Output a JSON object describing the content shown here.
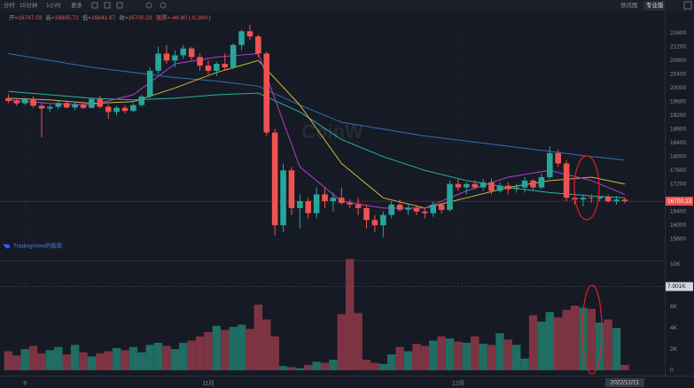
{
  "toolbar": {
    "items": [
      "分时",
      "15分钟",
      "1小时",
      "更多"
    ],
    "right": [
      "快讯图",
      "专业版"
    ]
  },
  "chart_data": {
    "type": "candlestick",
    "header": {
      "labels": [
        "开=",
        "高=",
        "低=",
        "收="
      ],
      "change": "涨跌=-46.80 (-0.28%)"
    },
    "watermark": "CoinW",
    "attribution": "TradingView的图表",
    "xlim": [
      -1,
      78.8
    ],
    "xticks": [
      {
        "value": 2,
        "label": "9"
      },
      {
        "value": 24,
        "label": "11月"
      },
      {
        "value": 54,
        "label": "12月"
      }
    ],
    "current_date": {
      "value": 74,
      "label": "2022/12/21"
    },
    "ylim": [
      15000,
      22200
    ],
    "yticks": [
      15600,
      16000,
      16400,
      17200,
      17600,
      18000,
      18400,
      18800,
      19200,
      19600,
      20000,
      20400,
      20800,
      21200,
      21600
    ],
    "grid": true,
    "up_color": "#26a69a",
    "down_color": "#ef5350",
    "ohlc": [
      [
        19700,
        19820,
        19550,
        19620
      ],
      [
        19620,
        19700,
        19480,
        19550
      ],
      [
        19550,
        19720,
        19500,
        19680
      ],
      [
        19680,
        19760,
        19420,
        19480
      ],
      [
        19480,
        19560,
        18560,
        19400
      ],
      [
        19400,
        19520,
        19300,
        19450
      ],
      [
        19450,
        19620,
        19380,
        19560
      ],
      [
        19560,
        19640,
        19400,
        19430
      ],
      [
        19430,
        19600,
        19350,
        19520
      ],
      [
        19520,
        19580,
        19380,
        19420
      ],
      [
        19420,
        19720,
        19400,
        19680
      ],
      [
        19680,
        19760,
        19400,
        19450
      ],
      [
        19450,
        19520,
        19100,
        19300
      ],
      [
        19300,
        19480,
        19200,
        19420
      ],
      [
        19420,
        19500,
        19260,
        19330
      ],
      [
        19330,
        19550,
        19300,
        19500
      ],
      [
        19500,
        19800,
        19450,
        19750
      ],
      [
        19750,
        20600,
        19700,
        20500
      ],
      [
        20500,
        21200,
        20400,
        21000
      ],
      [
        21000,
        21250,
        20700,
        20800
      ],
      [
        20800,
        21100,
        20600,
        20950
      ],
      [
        20950,
        21250,
        20850,
        21150
      ],
      [
        21150,
        21200,
        20800,
        20900
      ],
      [
        20900,
        21000,
        20500,
        20650
      ],
      [
        20650,
        20800,
        20400,
        20500
      ],
      [
        20500,
        20750,
        20350,
        20700
      ],
      [
        20700,
        21000,
        20500,
        20600
      ],
      [
        20600,
        21300,
        20550,
        21250
      ],
      [
        21250,
        21700,
        21100,
        21650
      ],
      [
        21650,
        21850,
        21400,
        21500
      ],
      [
        21500,
        21550,
        20900,
        21000
      ],
      [
        21000,
        21050,
        18600,
        18700
      ],
      [
        18700,
        18800,
        15700,
        16000
      ],
      [
        16000,
        17800,
        15800,
        17600
      ],
      [
        17600,
        17700,
        16300,
        16500
      ],
      [
        16500,
        16900,
        15900,
        16700
      ],
      [
        16700,
        16800,
        16200,
        16350
      ],
      [
        16350,
        17100,
        16200,
        16900
      ],
      [
        16900,
        17100,
        16500,
        16700
      ],
      [
        16700,
        16950,
        16400,
        16800
      ],
      [
        16800,
        17100,
        16600,
        16650
      ],
      [
        16650,
        16750,
        16500,
        16600
      ],
      [
        16600,
        16800,
        16300,
        16500
      ],
      [
        16500,
        16600,
        15900,
        16150
      ],
      [
        16150,
        16300,
        15800,
        16000
      ],
      [
        16000,
        16400,
        15650,
        16300
      ],
      [
        16300,
        16700,
        16200,
        16600
      ],
      [
        16600,
        16750,
        16400,
        16450
      ],
      [
        16450,
        16600,
        16300,
        16500
      ],
      [
        16500,
        16550,
        16300,
        16400
      ],
      [
        16400,
        16500,
        16200,
        16350
      ],
      [
        16350,
        16700,
        16250,
        16600
      ],
      [
        16600,
        16650,
        16350,
        16450
      ],
      [
        16450,
        17300,
        16400,
        17200
      ],
      [
        17200,
        17350,
        17000,
        17100
      ],
      [
        17100,
        17250,
        16900,
        17200
      ],
      [
        17200,
        17300,
        17050,
        17100
      ],
      [
        17100,
        17350,
        17000,
        17250
      ],
      [
        17250,
        17350,
        16900,
        17000
      ],
      [
        17000,
        17250,
        16950,
        17150
      ],
      [
        17150,
        17250,
        16900,
        17050
      ],
      [
        17050,
        17200,
        16950,
        17100
      ],
      [
        17100,
        17400,
        16950,
        17300
      ],
      [
        17300,
        17350,
        17000,
        17100
      ],
      [
        17100,
        17500,
        17050,
        17400
      ],
      [
        17400,
        18300,
        17350,
        18100
      ],
      [
        18100,
        18200,
        17700,
        17800
      ],
      [
        17800,
        17900,
        16700,
        16800
      ],
      [
        16800,
        17000,
        16600,
        16750
      ],
      [
        16750,
        16900,
        16550,
        16800
      ],
      [
        16800,
        16900,
        16650,
        16780
      ],
      [
        16780,
        16850,
        16700,
        16820
      ],
      [
        16820,
        16880,
        16650,
        16700
      ],
      [
        16700,
        16850,
        16600,
        16747.03
      ],
      [
        16747.03,
        16805.72,
        16641.67,
        16700.23
      ]
    ],
    "moving_averages": [
      {
        "color": "#2f6fb5",
        "x": [
          0,
          5,
          10,
          15,
          20,
          25,
          30,
          35,
          40,
          45,
          50,
          55,
          60,
          65,
          70,
          74
        ],
        "values": [
          21000,
          20800,
          20600,
          20450,
          20300,
          20200,
          20050,
          19500,
          19000,
          18800,
          18600,
          18450,
          18300,
          18150,
          18000,
          17900
        ]
      },
      {
        "color": "#2bb3a0",
        "x": [
          0,
          5,
          10,
          15,
          20,
          25,
          30,
          35,
          40,
          45,
          50,
          55,
          60,
          65,
          70,
          74
        ],
        "values": [
          19900,
          19800,
          19700,
          19650,
          19700,
          19800,
          19850,
          19300,
          18500,
          18000,
          17600,
          17300,
          17100,
          16950,
          16850,
          16800
        ]
      },
      {
        "color": "#d8b43a",
        "x": [
          0,
          5,
          10,
          15,
          20,
          25,
          30,
          35,
          40,
          45,
          50,
          55,
          60,
          65,
          70,
          74
        ],
        "values": [
          19700,
          19650,
          19550,
          19600,
          20000,
          20450,
          20800,
          19500,
          17800,
          16800,
          16500,
          16800,
          17100,
          17300,
          17400,
          17200
        ]
      },
      {
        "color": "#b03fd0",
        "x": [
          0,
          5,
          10,
          15,
          20,
          25,
          30,
          35,
          40,
          45,
          50,
          55,
          60,
          65,
          70,
          74
        ],
        "values": [
          19650,
          19550,
          19500,
          19800,
          20700,
          20900,
          21000,
          17700,
          16700,
          16500,
          16500,
          17000,
          17400,
          17600,
          17300,
          16900
        ]
      }
    ],
    "volume": {
      "ylim": [
        0,
        10200
      ],
      "yticks": [
        0,
        {
          "value": 2000,
          "label": "2K"
        },
        {
          "value": 4000,
          "label": "4K"
        },
        {
          "value": 6000,
          "label": "6K"
        },
        {
          "value": 10000,
          "label": "10K"
        }
      ],
      "marker": {
        "value": 7901,
        "label": "7.901K"
      },
      "up_color": "#1f6d63",
      "down_color": "#7d3442",
      "values": [
        1800,
        1400,
        2000,
        2300,
        1600,
        1900,
        2200,
        1500,
        2400,
        1700,
        1300,
        1600,
        1800,
        2100,
        1900,
        2200,
        1700,
        2400,
        2600,
        2300,
        2000,
        2600,
        2800,
        3200,
        3600,
        4200,
        3800,
        4100,
        4300,
        3900,
        6200,
        4800,
        3200,
        400,
        300,
        200,
        500,
        800,
        700,
        1000,
        5300,
        10500,
        5400,
        1000,
        700,
        600,
        1500,
        2200,
        1800,
        2500,
        2300,
        2800,
        3200,
        3000,
        2700,
        2600,
        3200,
        2500,
        2400,
        3500,
        2900,
        2400,
        1100,
        5200,
        4600,
        5500,
        5000,
        5700,
        6100,
        5900,
        5800,
        4500,
        4800,
        4000,
        500
      ]
    }
  }
}
